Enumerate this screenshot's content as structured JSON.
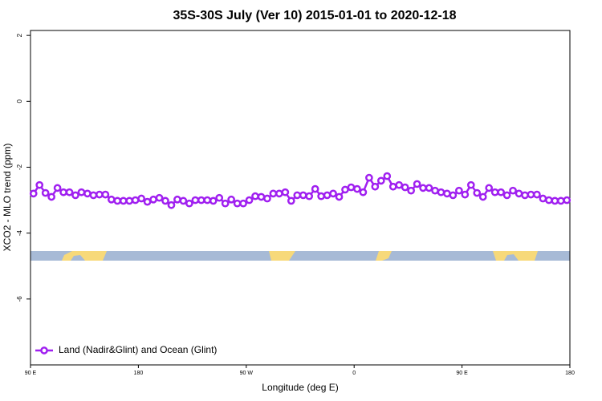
{
  "chart_data": {
    "type": "line",
    "title": "35S-30S July (Ver 10)   2015-01-01 to 2020-12-18",
    "x_label": "Longitude (deg E)",
    "y_label": "XCO2 - MLO trend (ppm)",
    "xlim": [
      90,
      540
    ],
    "xticks": [
      {
        "value": 90,
        "label": "90 E"
      },
      180,
      {
        "value": 270,
        "label": "90 W"
      },
      {
        "value": 360,
        "label": "0"
      },
      {
        "value": 450,
        "label": "90 E"
      },
      {
        "value": 540,
        "label": "180"
      }
    ],
    "ylim": [
      -8,
      2.15
    ],
    "yticks": [
      2,
      0,
      -2,
      -4,
      -6
    ],
    "legend_position": "lower left",
    "x": [
      92.5,
      97.5,
      102.5,
      107.5,
      112.5,
      117.5,
      122.5,
      127.5,
      132.5,
      137.5,
      142.5,
      147.5,
      152.5,
      157.5,
      162.5,
      167.5,
      172.5,
      177.5,
      182.5,
      187.5,
      192.5,
      197.5,
      202.5,
      207.5,
      212.5,
      217.5,
      222.5,
      227.5,
      232.5,
      237.5,
      242.5,
      247.5,
      252.5,
      257.5,
      262.5,
      267.5,
      272.5,
      277.5,
      282.5,
      287.5,
      292.5,
      297.5,
      302.5,
      307.5,
      312.5,
      317.5,
      322.5,
      327.5,
      332.5,
      337.5,
      342.5,
      347.5,
      352.5,
      357.5,
      362.5,
      367.5,
      372.5,
      377.5,
      382.5,
      387.5,
      392.5,
      397.5,
      402.5,
      407.5,
      412.5,
      417.5,
      422.5,
      427.5,
      432.5,
      437.5,
      442.5,
      447.5,
      452.5,
      457.5,
      462.5,
      467.5,
      472.5,
      477.5,
      482.5,
      487.5,
      492.5,
      497.5,
      502.5,
      507.5,
      512.5,
      517.5,
      522.5,
      527.5,
      532.5,
      537.5
    ],
    "series": [
      {
        "name": "Land (Nadir&Glint) and Ocean (Glint)",
        "color": "#a020f0",
        "values": [
          -2.8,
          -2.54,
          -2.78,
          -2.9,
          -2.63,
          -2.76,
          -2.76,
          -2.85,
          -2.76,
          -2.8,
          -2.85,
          -2.83,
          -2.83,
          -2.98,
          -3.02,
          -3.02,
          -3.02,
          -3.0,
          -2.95,
          -3.05,
          -2.98,
          -2.93,
          -3.02,
          -3.15,
          -2.98,
          -3.02,
          -3.1,
          -3.0,
          -3.0,
          -3.0,
          -3.02,
          -2.93,
          -3.1,
          -2.98,
          -3.1,
          -3.1,
          -3.0,
          -2.88,
          -2.9,
          -2.95,
          -2.8,
          -2.8,
          -2.76,
          -3.02,
          -2.85,
          -2.85,
          -2.88,
          -2.66,
          -2.88,
          -2.85,
          -2.8,
          -2.9,
          -2.68,
          -2.61,
          -2.66,
          -2.76,
          -2.32,
          -2.59,
          -2.41,
          -2.27,
          -2.59,
          -2.54,
          -2.61,
          -2.71,
          -2.51,
          -2.63,
          -2.63,
          -2.71,
          -2.76,
          -2.8,
          -2.85,
          -2.71,
          -2.83,
          -2.54,
          -2.78,
          -2.9,
          -2.63,
          -2.76,
          -2.76,
          -2.85,
          -2.71,
          -2.8,
          -2.85,
          -2.83,
          -2.83,
          -2.95,
          -3.0,
          -3.02,
          -3.02,
          -3.0
        ]
      }
    ]
  }
}
